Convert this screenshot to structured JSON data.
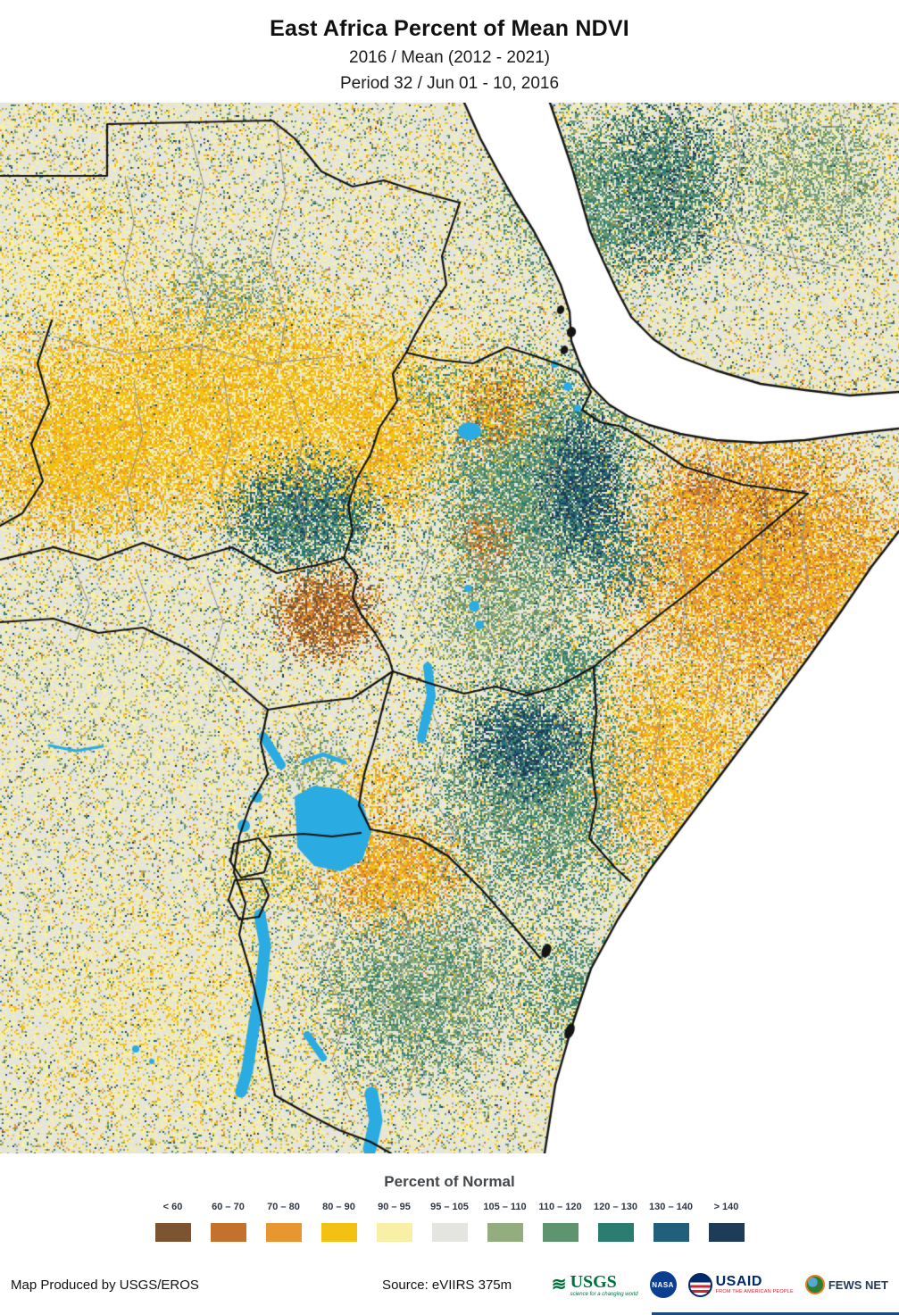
{
  "header": {
    "title": "East Africa Percent of Mean NDVI",
    "subtitle1": "2016 / Mean (2012 - 2021)",
    "subtitle2": "Period 32 / Jun 01 - 10, 2016"
  },
  "map": {
    "water_color": "#2aabe2",
    "sea_color": "#ffffff",
    "border_color": "#111111",
    "admin_border_color": "#8f8f8f"
  },
  "legend": {
    "title": "Percent of Normal",
    "classes": [
      {
        "label": "< 60",
        "color": "#7d5431"
      },
      {
        "label": "60 – 70",
        "color": "#c4712e"
      },
      {
        "label": "70 – 80",
        "color": "#e8962f"
      },
      {
        "label": "80 – 90",
        "color": "#f3c111"
      },
      {
        "label": "90 – 95",
        "color": "#f7f0a6"
      },
      {
        "label": "95 – 105",
        "color": "#e4e4e0"
      },
      {
        "label": "105 – 110",
        "color": "#94ad7f"
      },
      {
        "label": "110 – 120",
        "color": "#5f9471"
      },
      {
        "label": "120 – 130",
        "color": "#2c7d71"
      },
      {
        "label": "130 – 140",
        "color": "#225f7c"
      },
      {
        "label": "> 140",
        "color": "#1e3c58"
      }
    ]
  },
  "footer": {
    "credit": "Map Produced by USGS/EROS",
    "source": "Source: eVIIRS 375m",
    "logos": {
      "usgs": {
        "name": "USGS",
        "tagline": "science for a changing world",
        "wave": "≋"
      },
      "nasa": {
        "name": "NASA"
      },
      "usaid": {
        "name": "USAID",
        "tagline": "FROM THE AMERICAN PEOPLE"
      },
      "fewsnet": {
        "name": "FEWS NET"
      }
    }
  }
}
